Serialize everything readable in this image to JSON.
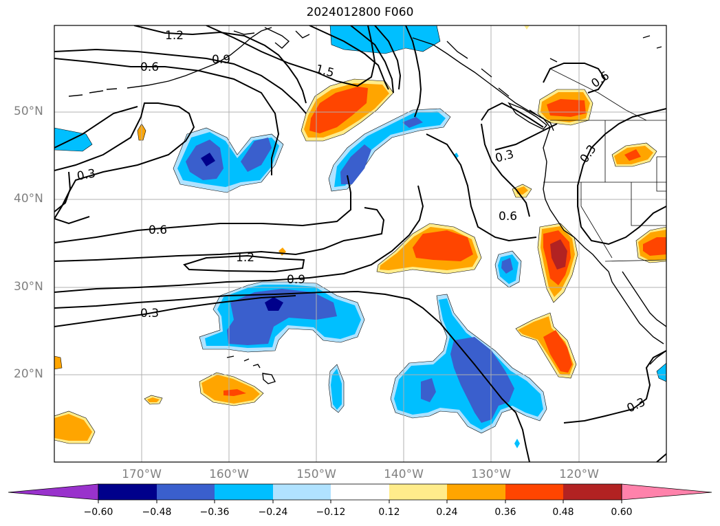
{
  "title": "2024012800 F060",
  "lat_labels": [
    "50°N",
    "40°N",
    "30°N",
    "20°N"
  ],
  "lon_labels": [
    "170°W",
    "160°W",
    "150°W",
    "140°W",
    "130°W",
    "120°W"
  ],
  "contour_labels": [
    "1.2",
    "0.9",
    "0.6",
    "1.5",
    "0.3",
    "0.6",
    "0.3",
    "0.6",
    "1.2",
    "0.9",
    "0.3",
    "0.6",
    "0.3",
    "0.3"
  ],
  "colorbar": {
    "ticks": [
      "−0.60",
      "−0.48",
      "−0.36",
      "−0.24",
      "−0.12",
      "0.12",
      "0.24",
      "0.36",
      "0.48",
      "0.60"
    ],
    "colors": [
      "#9932cc",
      "#00008b",
      "#3a5fcd",
      "#00bfff",
      "#b0e2ff",
      "#ffffff",
      "#ffec8b",
      "#ffa500",
      "#ff4500",
      "#b22222",
      "#ff82ab"
    ]
  }
}
